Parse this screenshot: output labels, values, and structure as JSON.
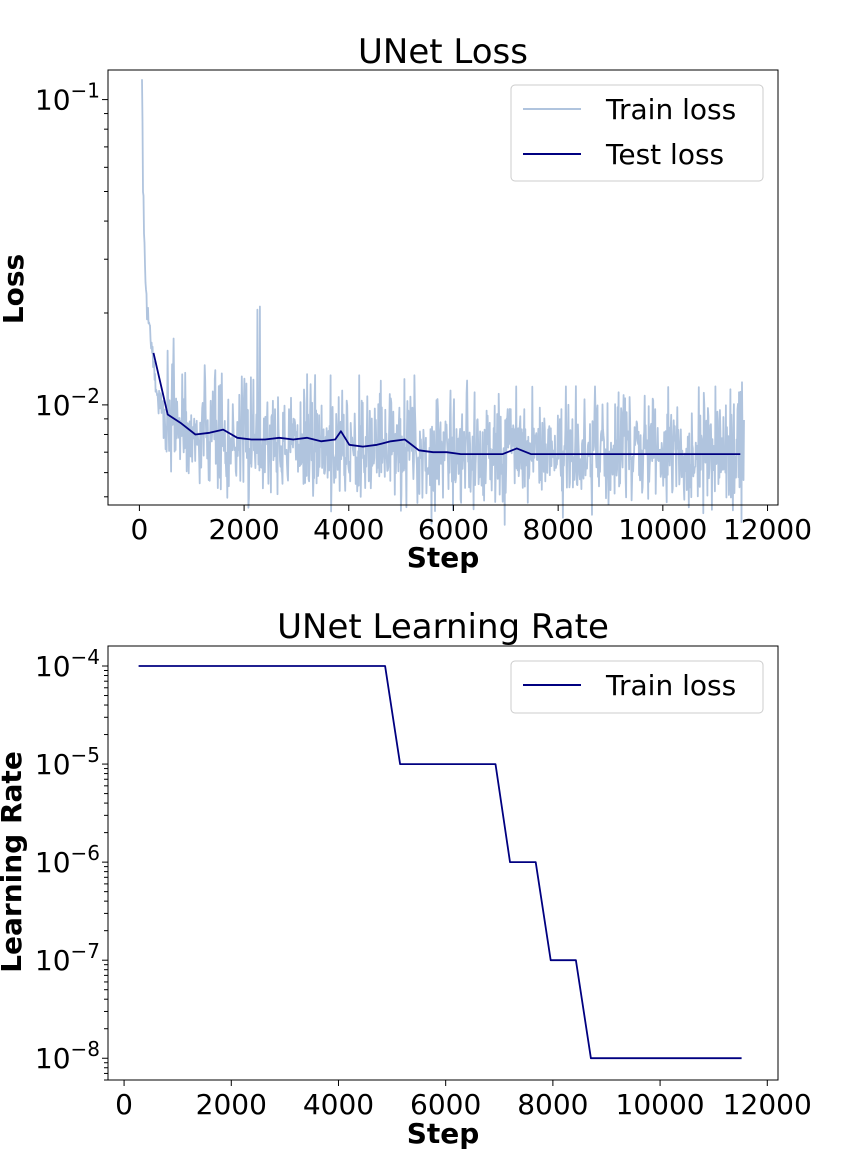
{
  "chart_data": [
    {
      "type": "line",
      "title": "UNet Loss",
      "xlabel": "Step",
      "ylabel": "Loss",
      "yscale": "log",
      "xlim": [
        -600,
        12200
      ],
      "ylim": [
        0.0047,
        0.125
      ],
      "xticks": [
        0,
        2000,
        4000,
        6000,
        8000,
        10000,
        12000
      ],
      "yticks": [
        {
          "value": 0.1,
          "base": "10",
          "exp": "−1"
        },
        {
          "value": 0.01,
          "base": "10",
          "exp": "−2"
        }
      ],
      "legend_position": "top-right",
      "series": [
        {
          "name": "Train loss",
          "color": "#b0c4de",
          "style": "noisy",
          "noise_seed": 7,
          "spikes": [
            [
              230,
              0.016
            ],
            [
              650,
              0.0165
            ],
            [
              1250,
              0.0135
            ],
            [
              1450,
              0.013
            ],
            [
              2250,
              0.0205
            ],
            [
              2300,
              0.021
            ],
            [
              3650,
              0.0125
            ],
            [
              4200,
              0.0125
            ],
            [
              5250,
              0.0125
            ],
            [
              7200,
              0.0115
            ],
            [
              8150,
              0.0115
            ],
            [
              8700,
              0.0115
            ],
            [
              9150,
              0.011
            ],
            [
              11000,
              0.0115
            ],
            [
              11450,
              0.011
            ]
          ],
          "x": [
            50,
            80,
            110,
            150,
            200,
            260,
            320,
            400,
            500,
            650,
            800,
            1000,
            1200,
            1500,
            1800,
            2100,
            2400,
            2700,
            3000,
            3400,
            3800,
            4200,
            4600,
            5000,
            5400,
            5800,
            6200,
            6600,
            7000,
            7400,
            7800,
            8200,
            8600,
            9000,
            9500,
            10000,
            10500,
            11000,
            11550
          ],
          "y": [
            0.112,
            0.04,
            0.027,
            0.021,
            0.0175,
            0.0135,
            0.0112,
            0.0098,
            0.0092,
            0.0088,
            0.0085,
            0.0081,
            0.008,
            0.0079,
            0.0076,
            0.0075,
            0.0076,
            0.0074,
            0.0074,
            0.0073,
            0.0074,
            0.0072,
            0.0071,
            0.0071,
            0.007,
            0.0069,
            0.0069,
            0.0068,
            0.0068,
            0.0069,
            0.0068,
            0.0068,
            0.0068,
            0.0068,
            0.0068,
            0.0068,
            0.0068,
            0.0068,
            0.0068
          ]
        },
        {
          "name": "Test loss",
          "color": "#000080",
          "x": [
            270,
            540,
            800,
            1070,
            1340,
            1600,
            1870,
            2140,
            2400,
            2670,
            2940,
            3200,
            3470,
            3740,
            3850,
            4010,
            4270,
            4540,
            4800,
            5070,
            5340,
            5610,
            5870,
            6140,
            6410,
            6680,
            6940,
            7210,
            7480,
            7740,
            8010,
            8280,
            8540,
            8810,
            9080,
            9340,
            9610,
            9880,
            10150,
            10410,
            10680,
            10950,
            11210,
            11480
          ],
          "y": [
            0.0148,
            0.0093,
            0.0087,
            0.008,
            0.0081,
            0.0083,
            0.0078,
            0.0077,
            0.0077,
            0.0078,
            0.0077,
            0.0078,
            0.0076,
            0.0077,
            0.0082,
            0.0074,
            0.0073,
            0.0074,
            0.0076,
            0.0077,
            0.0071,
            0.007,
            0.007,
            0.0069,
            0.0069,
            0.0069,
            0.0069,
            0.0072,
            0.0069,
            0.0069,
            0.0069,
            0.0069,
            0.0069,
            0.0069,
            0.0069,
            0.0069,
            0.0069,
            0.0069,
            0.0069,
            0.0069,
            0.0069,
            0.0069,
            0.0069,
            0.0069
          ]
        }
      ]
    },
    {
      "type": "line",
      "title": "UNet Learning Rate",
      "xlabel": "Step",
      "ylabel": "Learning Rate",
      "yscale": "log",
      "xlim": [
        -300,
        12200
      ],
      "ylim": [
        6e-09,
        0.00016
      ],
      "xticks": [
        0,
        2000,
        4000,
        6000,
        8000,
        10000,
        12000
      ],
      "yticks": [
        {
          "value": 0.0001,
          "base": "10",
          "exp": "−4"
        },
        {
          "value": 1e-05,
          "base": "10",
          "exp": "−5"
        },
        {
          "value": 1e-06,
          "base": "10",
          "exp": "−6"
        },
        {
          "value": 1e-07,
          "base": "10",
          "exp": "−7"
        },
        {
          "value": 1e-08,
          "base": "10",
          "exp": "−8"
        }
      ],
      "legend_position": "top-right",
      "series": [
        {
          "name": "Train loss",
          "color": "#000080",
          "x": [
            270,
            4870,
            5150,
            6930,
            7200,
            7680,
            7960,
            8430,
            8710,
            11520
          ],
          "y": [
            0.0001,
            0.0001,
            1e-05,
            1e-05,
            1e-06,
            1e-06,
            1e-07,
            1e-07,
            1e-08,
            1e-08
          ]
        }
      ]
    }
  ]
}
